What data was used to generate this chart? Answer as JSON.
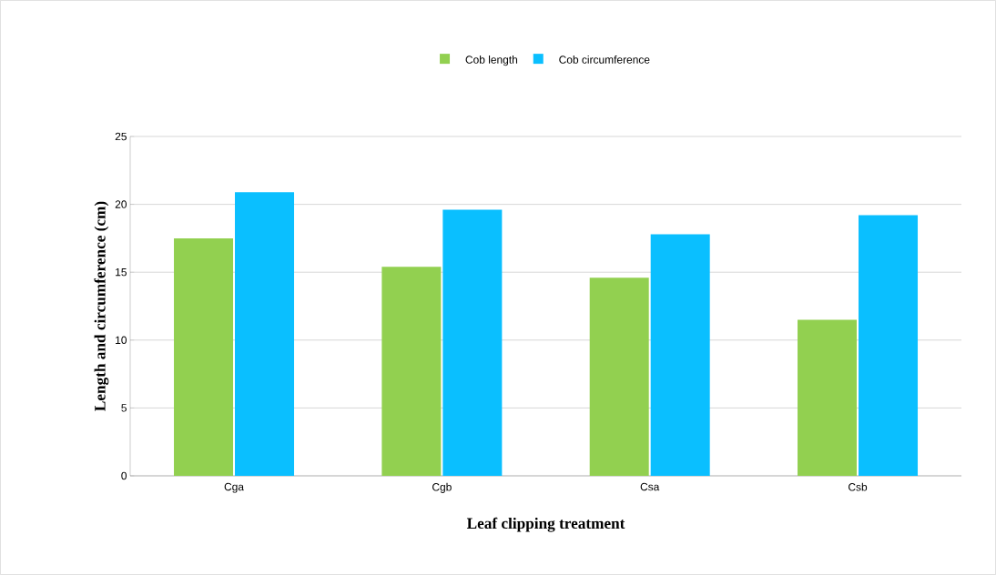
{
  "chart_data": {
    "type": "bar",
    "xlabel": "Leaf clipping treatment",
    "ylabel": "Length and circumference (cm)",
    "categories": [
      "Cga",
      "Cgb",
      "Csa",
      "Csb"
    ],
    "series": [
      {
        "name": "Cob length",
        "color": "#92d050",
        "values": [
          17.5,
          15.4,
          14.6,
          11.5
        ]
      },
      {
        "name": "Cob circumference",
        "color": "#0abfff",
        "values": [
          20.9,
          19.6,
          17.8,
          19.2
        ]
      }
    ],
    "ylim": [
      0,
      25
    ],
    "yticks": [
      0,
      5,
      10,
      15,
      20,
      25
    ],
    "grid": "y",
    "legend": "top"
  }
}
